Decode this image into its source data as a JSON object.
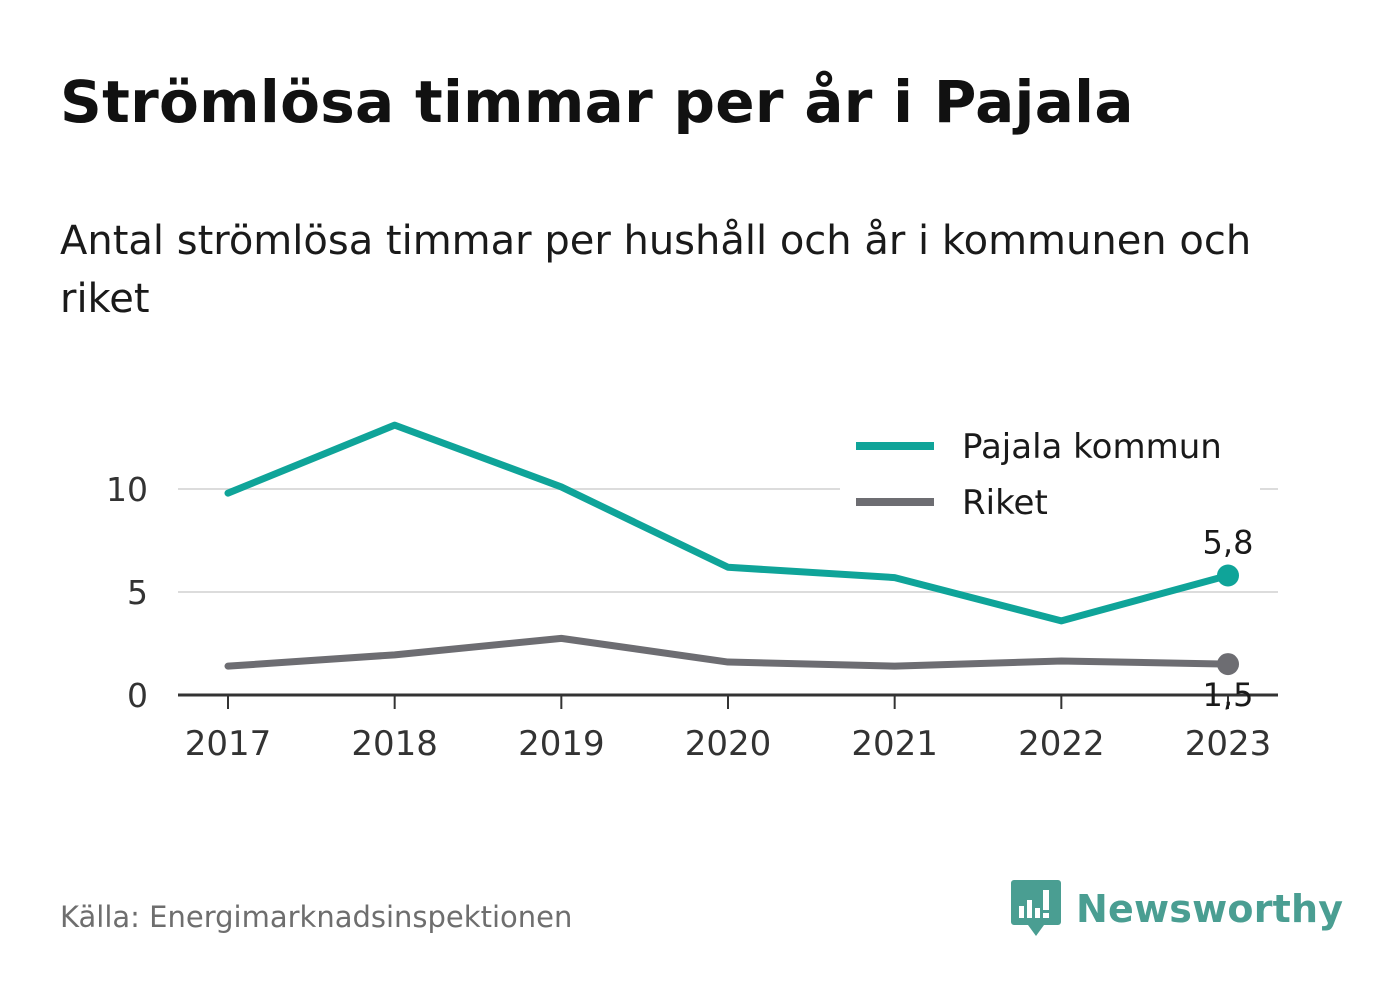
{
  "title": "Strömlösa timmar per år i Pajala",
  "subtitle": "Antal strömlösa timmar per hushåll och år i kommunen och riket",
  "source": "Källa: Energimarknadsinspektionen",
  "brand": {
    "name": "Newsworthy",
    "icon": "newsworthy-logo-icon",
    "color": "#4a9e92"
  },
  "chart_data": {
    "type": "line",
    "x": [
      "2017",
      "2018",
      "2019",
      "2020",
      "2021",
      "2022",
      "2023"
    ],
    "series": [
      {
        "name": "Pajala kommun",
        "color": "#0fa499",
        "values": [
          9.8,
          13.1,
          10.1,
          6.2,
          5.7,
          3.6,
          5.8
        ],
        "end_label": "5,8"
      },
      {
        "name": "Riket",
        "color": "#6d6d72",
        "values": [
          1.4,
          1.95,
          2.75,
          1.6,
          1.4,
          1.65,
          1.5
        ],
        "end_label": "1,5"
      }
    ],
    "yticks": [
      0,
      5,
      10
    ],
    "ytick_labels": [
      "0",
      "5",
      "10"
    ],
    "ylim": [
      0,
      13.5
    ],
    "grid": true,
    "legend": "top-right"
  }
}
